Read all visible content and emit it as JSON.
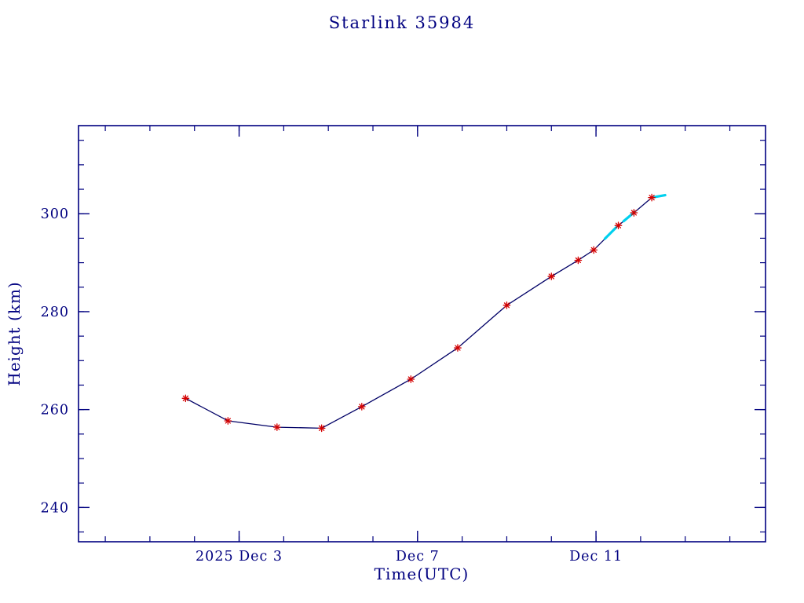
{
  "page": {
    "background_color": "#ffffff"
  },
  "chart_data": {
    "type": "line",
    "title": "Starlink 35984",
    "xlabel": "Time(UTC)",
    "ylabel": "Height (km)",
    "axis_color": "#000080",
    "line_color": "#000066",
    "xlim_days": [
      -0.6,
      14.8
    ],
    "ylim_km": [
      233,
      318
    ],
    "x_axis": {
      "unit": "day of December 2025 (decimal)",
      "major_ticks": [
        {
          "day": 3,
          "label": "2025 Dec  3"
        },
        {
          "day": 7,
          "label": "Dec  7"
        },
        {
          "day": 11,
          "label": "Dec 11"
        }
      ],
      "minor_tick_days": [
        0,
        1,
        2,
        3,
        4,
        5,
        6,
        7,
        8,
        9,
        10,
        11,
        12,
        13,
        14
      ]
    },
    "y_axis": {
      "major_ticks": [
        {
          "km": 240,
          "label": "240"
        },
        {
          "km": 260,
          "label": "260"
        },
        {
          "km": 280,
          "label": "280"
        },
        {
          "km": 300,
          "label": "300"
        }
      ],
      "minor_tick_step_km": 5
    },
    "series": [
      {
        "name": "observed-heights",
        "marker": "asterisk",
        "marker_color": "#d40000",
        "points": [
          {
            "day": 1.8,
            "km": 262.3
          },
          {
            "day": 2.75,
            "km": 257.7
          },
          {
            "day": 3.85,
            "km": 256.4
          },
          {
            "day": 4.85,
            "km": 256.2
          },
          {
            "day": 5.75,
            "km": 260.6
          },
          {
            "day": 6.85,
            "km": 266.2
          },
          {
            "day": 7.9,
            "km": 272.6
          },
          {
            "day": 9.0,
            "km": 281.3
          },
          {
            "day": 10.0,
            "km": 287.2
          },
          {
            "day": 10.6,
            "km": 290.5
          },
          {
            "day": 10.95,
            "km": 292.6
          },
          {
            "day": 11.5,
            "km": 297.6
          },
          {
            "day": 11.85,
            "km": 300.2
          },
          {
            "day": 12.25,
            "km": 303.3
          }
        ]
      },
      {
        "name": "recent-heights",
        "marker": "dash",
        "marker_color": "#00d0ee",
        "segments": [
          {
            "day": [
              11.2,
              11.45
            ],
            "km": [
              294.9,
              297.2
            ]
          },
          {
            "day": [
              11.62,
              11.87
            ],
            "km": [
              298.5,
              300.4
            ]
          },
          {
            "day": [
              12.3,
              12.55
            ],
            "km": [
              303.4,
              303.8
            ]
          }
        ]
      }
    ],
    "trend_line_extra_point": {
      "day": 12.55,
      "km": 303.8
    }
  }
}
